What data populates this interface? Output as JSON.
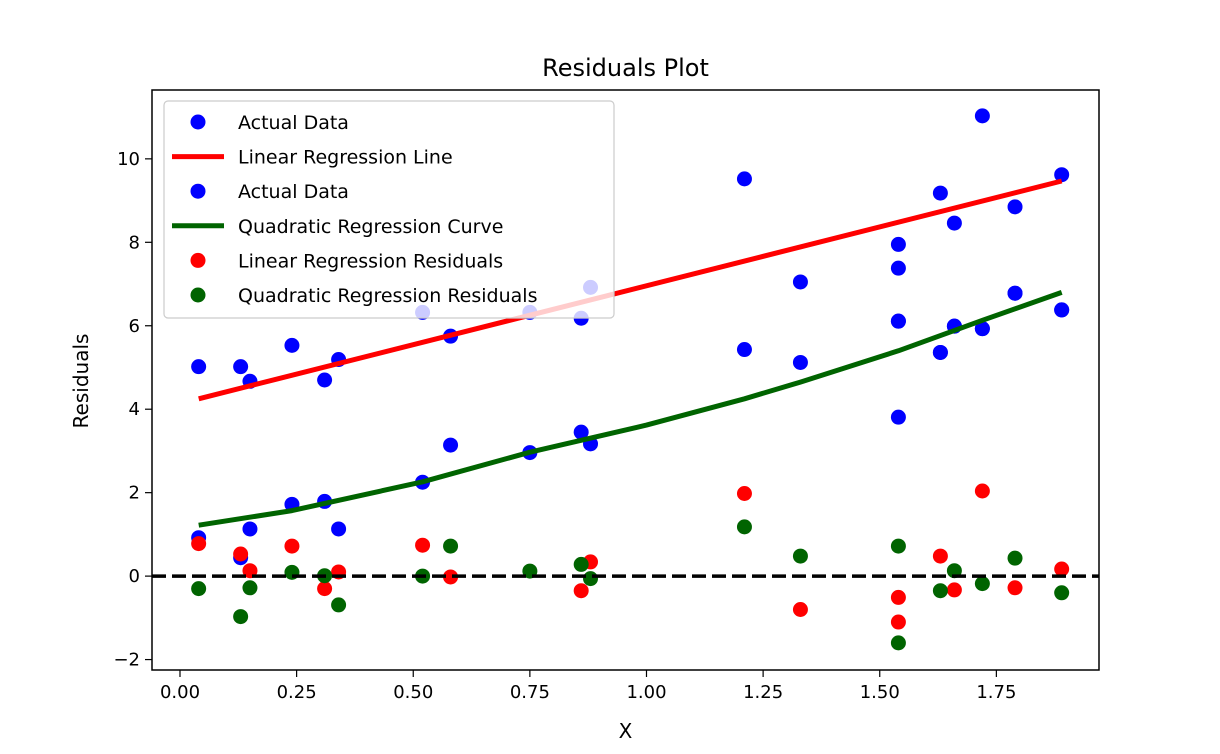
{
  "chart_data": {
    "type": "scatter",
    "title": "Residuals Plot",
    "xlabel": "X",
    "ylabel": "Residuals",
    "xlim": [
      -0.06,
      1.97
    ],
    "ylim": [
      -2.25,
      11.65
    ],
    "xticks": [
      0.0,
      0.25,
      0.5,
      0.75,
      1.0,
      1.25,
      1.5,
      1.75
    ],
    "xtick_labels": [
      "0.00",
      "0.25",
      "0.50",
      "0.75",
      "1.00",
      "1.25",
      "1.50",
      "1.75"
    ],
    "yticks": [
      -2,
      0,
      2,
      4,
      6,
      8,
      10
    ],
    "ytick_labels": [
      "−2",
      "0",
      "2",
      "4",
      "6",
      "8",
      "10"
    ],
    "grid": false,
    "legend_position": "top-left",
    "reference_line": {
      "y": 0,
      "style": "dashed",
      "color": "#000000"
    },
    "series": [
      {
        "name": "Actual Data",
        "kind": "scatter",
        "color": "#0000ff",
        "x": [
          0.04,
          0.13,
          0.15,
          0.24,
          0.31,
          0.34,
          0.52,
          0.58,
          0.75,
          0.86,
          0.88,
          1.21,
          1.33,
          1.54,
          1.54,
          1.54,
          1.54,
          1.63,
          1.63,
          1.66,
          1.66,
          1.72,
          1.72,
          1.79,
          1.79,
          1.89,
          1.89
        ],
        "y": [
          5.02,
          5.02,
          4.67,
          5.53,
          4.7,
          5.19,
          6.32,
          5.75,
          6.32,
          6.18,
          6.92,
          9.52,
          7.05,
          7.95,
          7.38,
          6.11,
          3.81,
          9.18,
          5.36,
          8.46,
          5.99,
          11.03,
          5.93,
          8.85,
          6.78,
          9.62,
          6.38
        ]
      },
      {
        "name": "Linear Regression Line",
        "kind": "line",
        "color": "#ff0000",
        "x": [
          0.04,
          1.89
        ],
        "y": [
          4.25,
          9.47
        ]
      },
      {
        "name": "Actual Data",
        "kind": "scatter",
        "color": "#0000ff",
        "x": [
          0.04,
          0.13,
          0.15,
          0.24,
          0.31,
          0.34,
          0.52,
          0.58,
          0.75,
          0.86,
          0.88,
          1.21,
          1.33,
          1.54,
          1.63,
          1.66,
          1.72,
          1.79,
          1.89
        ],
        "y": [
          0.92,
          0.44,
          1.13,
          1.72,
          1.79,
          1.13,
          2.25,
          3.14,
          2.96,
          3.45,
          3.17,
          5.43,
          5.12,
          6.11,
          5.36,
          5.99,
          5.93,
          6.78,
          6.38
        ]
      },
      {
        "name": "Quadratic Regression Curve",
        "kind": "line",
        "color": "#006400",
        "x": [
          0.04,
          0.24,
          0.52,
          0.75,
          1.0,
          1.21,
          1.33,
          1.54,
          1.72,
          1.89
        ],
        "y": [
          1.22,
          1.57,
          2.26,
          2.97,
          3.62,
          4.25,
          4.65,
          5.4,
          6.13,
          6.8
        ]
      },
      {
        "name": "Linear Regression Residuals",
        "kind": "scatter",
        "color": "#ff0000",
        "x": [
          0.04,
          0.13,
          0.15,
          0.24,
          0.31,
          0.34,
          0.52,
          0.58,
          0.86,
          0.88,
          1.21,
          1.33,
          1.54,
          1.54,
          1.63,
          1.66,
          1.72,
          1.79,
          1.89
        ],
        "y": [
          0.78,
          0.53,
          0.13,
          0.72,
          -0.3,
          0.1,
          0.74,
          -0.02,
          -0.35,
          0.34,
          1.98,
          -0.8,
          -0.51,
          -1.1,
          0.48,
          -0.33,
          2.04,
          -0.28,
          0.17
        ]
      },
      {
        "name": "Quadratic Regression Residuals",
        "kind": "scatter",
        "color": "#006400",
        "x": [
          0.04,
          0.13,
          0.15,
          0.24,
          0.31,
          0.34,
          0.52,
          0.58,
          0.75,
          0.86,
          0.88,
          1.21,
          1.33,
          1.54,
          1.54,
          1.63,
          1.66,
          1.72,
          1.79,
          1.89
        ],
        "y": [
          -0.3,
          -0.97,
          -0.28,
          0.09,
          0.01,
          -0.69,
          0.0,
          0.72,
          0.12,
          0.28,
          -0.06,
          1.18,
          0.48,
          0.72,
          -1.6,
          -0.35,
          0.13,
          -0.18,
          0.43,
          -0.4
        ]
      }
    ]
  }
}
